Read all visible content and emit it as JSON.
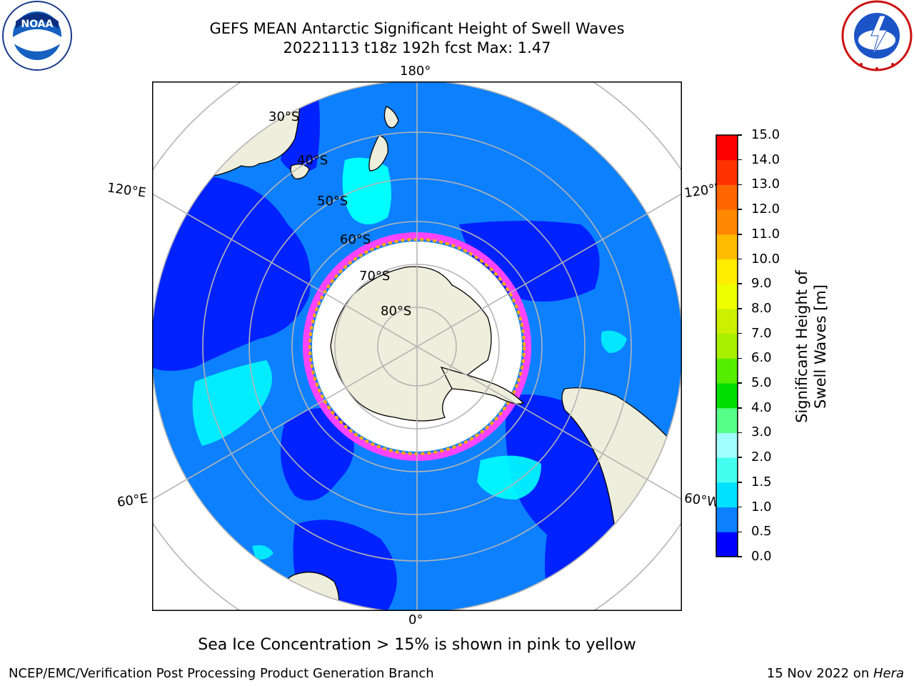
{
  "header": {
    "title_line1": "GEFS MEAN Antarctic Significant Height of Swell Waves",
    "title_line2": "20221113 t18z 192h fcst   Max: 1.47"
  },
  "logos": {
    "left": "noaa-logo",
    "right": "national-weather-service-logo"
  },
  "map": {
    "projection": "south-polar-stereographic",
    "longitude_labels": {
      "top": "180°",
      "bottom": "0°",
      "upper_left": "120°E",
      "upper_right": "120°W",
      "lower_left": "60°E",
      "lower_right": "60°W"
    },
    "latitude_labels": [
      "30°S",
      "40°S",
      "50°S",
      "60°S",
      "70°S",
      "80°S"
    ],
    "colors": {
      "land": "#eeeedc",
      "ocean_low": "#0022ff",
      "ocean_mid": "#0c80ff",
      "ocean_swell": "#00ffff",
      "ice_fringe": "#ff44ff",
      "ice_edge": "#ffaa00",
      "gridline": "#b4b4b4"
    }
  },
  "colorbar": {
    "label": "Significant Height of Swell Waves [m]",
    "ticks": [
      "0.0",
      "0.5",
      "1.0",
      "1.5",
      "2.0",
      "3.0",
      "4.0",
      "5.0",
      "6.0",
      "7.0",
      "8.0",
      "9.0",
      "10.0",
      "11.0",
      "12.0",
      "13.0",
      "14.0",
      "15.0"
    ],
    "colors": [
      "#0000ff",
      "#0c80ff",
      "#00e0ff",
      "#44ffee",
      "#a0ffff",
      "#55ff88",
      "#00dd00",
      "#55ee00",
      "#aaee00",
      "#ccf000",
      "#eeff00",
      "#ffee00",
      "#ffbb00",
      "#ff8800",
      "#ff6600",
      "#ff3300",
      "#ff0000"
    ]
  },
  "footer": {
    "note": "Sea Ice Concentration > 15% is shown in pink to yellow",
    "credit_left": "NCEP/EMC/Verification Post Processing Product Generation Branch",
    "credit_date": "15 Nov 2022 on ",
    "credit_machine": "Hera"
  }
}
